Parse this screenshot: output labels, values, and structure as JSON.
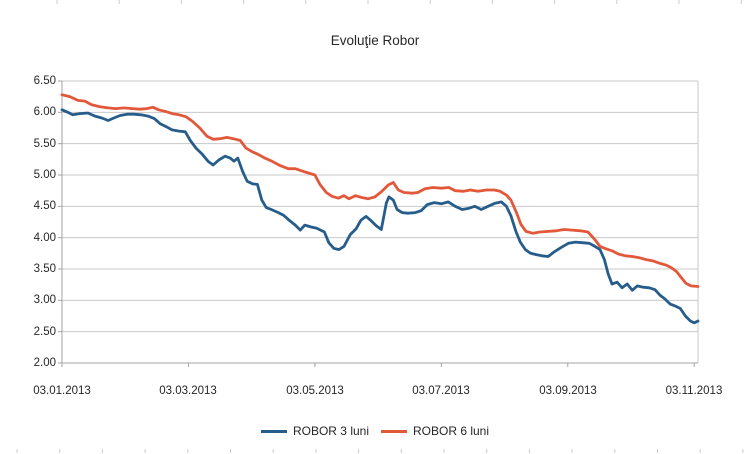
{
  "title": "Evoluţie Robor",
  "colors": {
    "background": "#ffffff",
    "grid": "#c9c9c9",
    "axis": "#a3a3a3",
    "edge_ticks": "#cccccc",
    "label": "#262626",
    "series_blue": "#275d8a",
    "series_orange": "#e2583a"
  },
  "legend": {
    "items": [
      {
        "label": "ROBOR 3 luni",
        "swatch_color": "#275d8a"
      },
      {
        "label": "ROBOR 6 luni",
        "swatch_color": "#e2583a"
      }
    ]
  },
  "chart_data": {
    "type": "line",
    "title": "Evoluţie Robor",
    "grid": true,
    "legend_position": "bottom",
    "x_axis": {
      "tick_labels": [
        "03.01.2013",
        "03.03.2013",
        "03.05.2013",
        "03.07.2013",
        "03.09.2013",
        "03.11.2013"
      ],
      "tick_positions_months": [
        0,
        2,
        4,
        6,
        8,
        10
      ],
      "range_months": [
        0,
        10.06
      ],
      "unit_note": "t = months elapsed since 03.01.2013"
    },
    "y_axis": {
      "min": 2.0,
      "max": 6.5,
      "step": 0.5,
      "tick_labels": [
        "6.50",
        "6.00",
        "5.50",
        "5.00",
        "4.50",
        "4.00",
        "3.50",
        "3.00",
        "2.50",
        "2.00"
      ]
    },
    "series": [
      {
        "name": "ROBOR 3 luni",
        "color": "#275d8a",
        "points": [
          [
            0,
            6.04
          ],
          [
            0.09,
            6.0
          ],
          [
            0.17,
            5.96
          ],
          [
            0.28,
            5.98
          ],
          [
            0.41,
            5.99
          ],
          [
            0.52,
            5.94
          ],
          [
            0.63,
            5.91
          ],
          [
            0.73,
            5.87
          ],
          [
            0.82,
            5.91
          ],
          [
            0.92,
            5.95
          ],
          [
            1.03,
            5.97
          ],
          [
            1.14,
            5.97
          ],
          [
            1.25,
            5.96
          ],
          [
            1.36,
            5.94
          ],
          [
            1.46,
            5.9
          ],
          [
            1.55,
            5.82
          ],
          [
            1.65,
            5.77
          ],
          [
            1.74,
            5.72
          ],
          [
            1.85,
            5.7
          ],
          [
            1.95,
            5.69
          ],
          [
            2.03,
            5.55
          ],
          [
            2.12,
            5.43
          ],
          [
            2.22,
            5.33
          ],
          [
            2.31,
            5.22
          ],
          [
            2.39,
            5.16
          ],
          [
            2.48,
            5.24
          ],
          [
            2.58,
            5.3
          ],
          [
            2.66,
            5.27
          ],
          [
            2.72,
            5.22
          ],
          [
            2.78,
            5.27
          ],
          [
            2.86,
            5.05
          ],
          [
            2.93,
            4.9
          ],
          [
            3.01,
            4.86
          ],
          [
            3.09,
            4.85
          ],
          [
            3.16,
            4.6
          ],
          [
            3.23,
            4.48
          ],
          [
            3.31,
            4.45
          ],
          [
            3.4,
            4.41
          ],
          [
            3.5,
            4.36
          ],
          [
            3.59,
            4.28
          ],
          [
            3.69,
            4.2
          ],
          [
            3.77,
            4.12
          ],
          [
            3.84,
            4.2
          ],
          [
            3.94,
            4.17
          ],
          [
            4.03,
            4.15
          ],
          [
            4.15,
            4.09
          ],
          [
            4.22,
            3.92
          ],
          [
            4.3,
            3.83
          ],
          [
            4.38,
            3.81
          ],
          [
            4.46,
            3.86
          ],
          [
            4.56,
            4.05
          ],
          [
            4.65,
            4.14
          ],
          [
            4.73,
            4.28
          ],
          [
            4.81,
            4.34
          ],
          [
            4.89,
            4.27
          ],
          [
            4.97,
            4.19
          ],
          [
            5.05,
            4.13
          ],
          [
            5.13,
            4.55
          ],
          [
            5.17,
            4.65
          ],
          [
            5.24,
            4.6
          ],
          [
            5.3,
            4.45
          ],
          [
            5.38,
            4.4
          ],
          [
            5.47,
            4.39
          ],
          [
            5.59,
            4.4
          ],
          [
            5.68,
            4.43
          ],
          [
            5.78,
            4.53
          ],
          [
            5.89,
            4.56
          ],
          [
            6.0,
            4.54
          ],
          [
            6.11,
            4.57
          ],
          [
            6.22,
            4.5
          ],
          [
            6.33,
            4.45
          ],
          [
            6.44,
            4.47
          ],
          [
            6.53,
            4.5
          ],
          [
            6.63,
            4.45
          ],
          [
            6.74,
            4.5
          ],
          [
            6.85,
            4.55
          ],
          [
            6.95,
            4.57
          ],
          [
            7.03,
            4.5
          ],
          [
            7.1,
            4.35
          ],
          [
            7.18,
            4.1
          ],
          [
            7.25,
            3.93
          ],
          [
            7.33,
            3.81
          ],
          [
            7.41,
            3.75
          ],
          [
            7.5,
            3.73
          ],
          [
            7.59,
            3.71
          ],
          [
            7.69,
            3.7
          ],
          [
            7.78,
            3.77
          ],
          [
            7.89,
            3.84
          ],
          [
            8.01,
            3.91
          ],
          [
            8.12,
            3.93
          ],
          [
            8.23,
            3.92
          ],
          [
            8.34,
            3.91
          ],
          [
            8.43,
            3.86
          ],
          [
            8.51,
            3.81
          ],
          [
            8.58,
            3.65
          ],
          [
            8.64,
            3.42
          ],
          [
            8.7,
            3.26
          ],
          [
            8.78,
            3.29
          ],
          [
            8.86,
            3.2
          ],
          [
            8.94,
            3.26
          ],
          [
            9.02,
            3.16
          ],
          [
            9.1,
            3.23
          ],
          [
            9.19,
            3.21
          ],
          [
            9.29,
            3.2
          ],
          [
            9.38,
            3.17
          ],
          [
            9.46,
            3.08
          ],
          [
            9.54,
            3.02
          ],
          [
            9.62,
            2.94
          ],
          [
            9.7,
            2.91
          ],
          [
            9.78,
            2.87
          ],
          [
            9.86,
            2.75
          ],
          [
            9.94,
            2.67
          ],
          [
            10.0,
            2.64
          ],
          [
            10.06,
            2.67
          ]
        ]
      },
      {
        "name": "ROBOR 6 luni",
        "color": "#e2583a",
        "points": [
          [
            0,
            6.28
          ],
          [
            0.13,
            6.25
          ],
          [
            0.25,
            6.19
          ],
          [
            0.36,
            6.18
          ],
          [
            0.47,
            6.12
          ],
          [
            0.6,
            6.09
          ],
          [
            0.73,
            6.07
          ],
          [
            0.85,
            6.06
          ],
          [
            0.98,
            6.07
          ],
          [
            1.11,
            6.06
          ],
          [
            1.23,
            6.05
          ],
          [
            1.34,
            6.06
          ],
          [
            1.44,
            6.08
          ],
          [
            1.53,
            6.04
          ],
          [
            1.65,
            6.01
          ],
          [
            1.74,
            5.98
          ],
          [
            1.85,
            5.96
          ],
          [
            1.96,
            5.93
          ],
          [
            2.06,
            5.86
          ],
          [
            2.18,
            5.75
          ],
          [
            2.29,
            5.62
          ],
          [
            2.39,
            5.57
          ],
          [
            2.5,
            5.58
          ],
          [
            2.61,
            5.6
          ],
          [
            2.71,
            5.58
          ],
          [
            2.82,
            5.55
          ],
          [
            2.91,
            5.43
          ],
          [
            3.01,
            5.37
          ],
          [
            3.1,
            5.33
          ],
          [
            3.21,
            5.27
          ],
          [
            3.32,
            5.22
          ],
          [
            3.45,
            5.15
          ],
          [
            3.58,
            5.1
          ],
          [
            3.69,
            5.1
          ],
          [
            3.84,
            5.05
          ],
          [
            4.0,
            5.0
          ],
          [
            4.08,
            4.85
          ],
          [
            4.18,
            4.72
          ],
          [
            4.27,
            4.66
          ],
          [
            4.37,
            4.63
          ],
          [
            4.46,
            4.67
          ],
          [
            4.54,
            4.62
          ],
          [
            4.64,
            4.67
          ],
          [
            4.75,
            4.64
          ],
          [
            4.84,
            4.62
          ],
          [
            4.95,
            4.65
          ],
          [
            5.06,
            4.74
          ],
          [
            5.16,
            4.84
          ],
          [
            5.24,
            4.88
          ],
          [
            5.32,
            4.76
          ],
          [
            5.41,
            4.72
          ],
          [
            5.54,
            4.71
          ],
          [
            5.63,
            4.72
          ],
          [
            5.74,
            4.78
          ],
          [
            5.87,
            4.8
          ],
          [
            6.0,
            4.79
          ],
          [
            6.12,
            4.8
          ],
          [
            6.22,
            4.75
          ],
          [
            6.35,
            4.74
          ],
          [
            6.46,
            4.76
          ],
          [
            6.58,
            4.74
          ],
          [
            6.71,
            4.76
          ],
          [
            6.84,
            4.76
          ],
          [
            6.93,
            4.74
          ],
          [
            7.03,
            4.68
          ],
          [
            7.1,
            4.6
          ],
          [
            7.18,
            4.42
          ],
          [
            7.26,
            4.21
          ],
          [
            7.34,
            4.1
          ],
          [
            7.45,
            4.07
          ],
          [
            7.56,
            4.09
          ],
          [
            7.69,
            4.1
          ],
          [
            7.82,
            4.11
          ],
          [
            7.94,
            4.13
          ],
          [
            8.07,
            4.12
          ],
          [
            8.2,
            4.11
          ],
          [
            8.32,
            4.09
          ],
          [
            8.42,
            3.98
          ],
          [
            8.51,
            3.86
          ],
          [
            8.61,
            3.82
          ],
          [
            8.7,
            3.79
          ],
          [
            8.8,
            3.74
          ],
          [
            8.91,
            3.71
          ],
          [
            9.02,
            3.7
          ],
          [
            9.13,
            3.68
          ],
          [
            9.24,
            3.65
          ],
          [
            9.35,
            3.63
          ],
          [
            9.46,
            3.59
          ],
          [
            9.56,
            3.56
          ],
          [
            9.64,
            3.52
          ],
          [
            9.72,
            3.46
          ],
          [
            9.79,
            3.37
          ],
          [
            9.87,
            3.27
          ],
          [
            9.95,
            3.23
          ],
          [
            10.06,
            3.22
          ]
        ]
      }
    ]
  }
}
